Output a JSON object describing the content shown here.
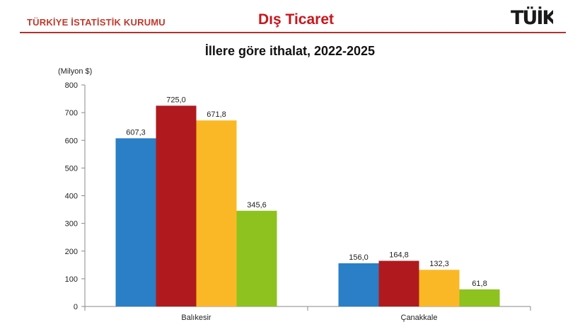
{
  "header": {
    "organization": "TÜRKİYE İSTATİSTİK KURUMU",
    "title": "Dış Ticaret",
    "logo_text": "TÜİK"
  },
  "chart_data": {
    "type": "bar",
    "title": "İllere göre ithalat, 2022-2025",
    "unit_label": "(Milyon $)",
    "categories": [
      "Balıkesir",
      "Çanakkale"
    ],
    "series": [
      {
        "values": [
          607.3,
          156.0
        ],
        "labels": [
          "607,3",
          "156,0"
        ],
        "color": "#2a7fc6"
      },
      {
        "values": [
          725.0,
          164.8
        ],
        "labels": [
          "725,0",
          "164,8"
        ],
        "color": "#b01a1e"
      },
      {
        "values": [
          671.8,
          132.3
        ],
        "labels": [
          "671,8",
          "132,3"
        ],
        "color": "#fbb826"
      },
      {
        "values": [
          345.6,
          61.8
        ],
        "labels": [
          "345,6",
          "61,8"
        ],
        "color": "#8dc21f"
      }
    ],
    "ylim": [
      0,
      800
    ],
    "yticks": [
      "0",
      "100",
      "200",
      "300",
      "400",
      "500",
      "600",
      "700",
      "800"
    ],
    "legend": "none",
    "grid": false
  }
}
